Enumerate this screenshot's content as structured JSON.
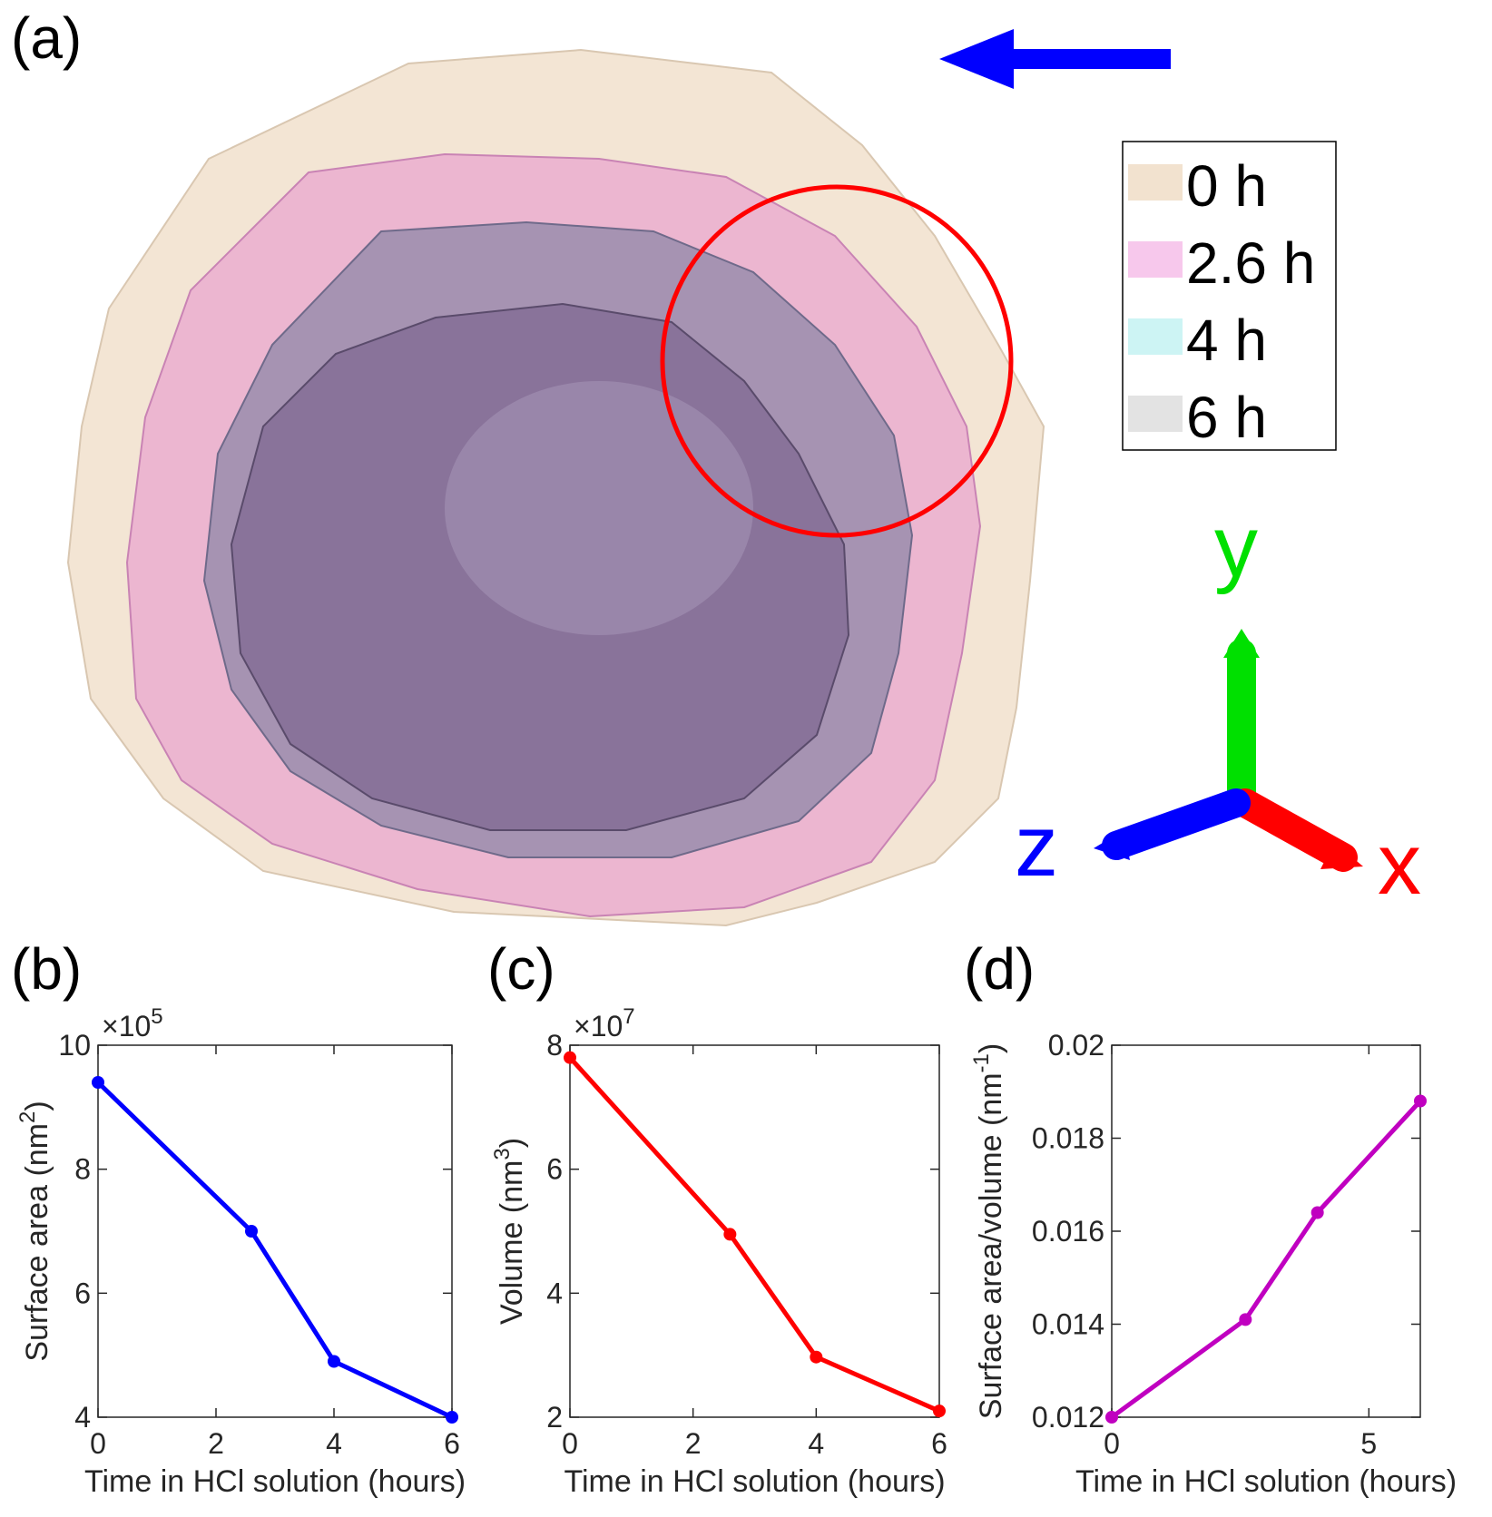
{
  "panel_labels": {
    "a": "(a)",
    "b": "(b)",
    "c": "(c)",
    "d": "(d)"
  },
  "panel_a": {
    "legend": [
      {
        "label": "0 h",
        "color": "#f2e2cf"
      },
      {
        "label": "2.6 h",
        "color": "#f7c8ec"
      },
      {
        "label": "4 h",
        "color": "#cdf4f4"
      },
      {
        "label": "6 h",
        "color": "#e3e3e3"
      }
    ],
    "axes_triad": {
      "x_label": "x",
      "y_label": "y",
      "z_label": "z",
      "x_color": "#ff0000",
      "y_color": "#00e000",
      "z_color": "#0000ff"
    },
    "arrow_color": "#0000ff",
    "highlight_circle_color": "#ff0000"
  },
  "chart_data": [
    {
      "type": "line",
      "panel": "(b)",
      "x": [
        0,
        2.6,
        4,
        6
      ],
      "series": [
        {
          "values": [
            9.4,
            7.0,
            4.9,
            4.0
          ],
          "color": "#0000ff"
        }
      ],
      "xlabel": "Time in HCl solution (hours)",
      "ylabel_main": "Surface area (nm",
      "ylabel_sup": "2",
      "ylabel_tail": ")",
      "exponent_base": "×10",
      "exponent_power": "5",
      "xlim": [
        0,
        6
      ],
      "ylim": [
        4,
        10
      ],
      "xticks": [
        0,
        2,
        4,
        6
      ],
      "xtick_labels": [
        "0",
        "2",
        "4",
        "6"
      ],
      "yticks": [
        4,
        6,
        8,
        10
      ],
      "ytick_labels": [
        "4",
        "6",
        "8",
        "10"
      ],
      "grid": false
    },
    {
      "type": "line",
      "panel": "(c)",
      "x": [
        0,
        2.6,
        4,
        6
      ],
      "series": [
        {
          "values": [
            7.8,
            4.95,
            2.97,
            2.1
          ],
          "color": "#ff0000"
        }
      ],
      "xlabel": "Time in HCl solution (hours)",
      "ylabel_main": "Volume (nm",
      "ylabel_sup": "3",
      "ylabel_tail": ")",
      "exponent_base": "×10",
      "exponent_power": "7",
      "xlim": [
        0,
        6
      ],
      "ylim": [
        2,
        8
      ],
      "xticks": [
        0,
        2,
        4,
        6
      ],
      "xtick_labels": [
        "0",
        "2",
        "4",
        "6"
      ],
      "yticks": [
        2,
        4,
        6,
        8
      ],
      "ytick_labels": [
        "2",
        "4",
        "6",
        "8"
      ],
      "grid": false
    },
    {
      "type": "line",
      "panel": "(d)",
      "x": [
        0,
        2.6,
        4,
        6
      ],
      "series": [
        {
          "values": [
            0.012,
            0.0141,
            0.0164,
            0.0188
          ],
          "color": "#c000c0"
        }
      ],
      "xlabel": "Time in HCl solution (hours)",
      "ylabel_main": "Surface area/volume (nm",
      "ylabel_sup": "-1",
      "ylabel_tail": ")",
      "exponent_base": "",
      "exponent_power": "",
      "xlim": [
        0,
        6
      ],
      "ylim": [
        0.012,
        0.02
      ],
      "xticks": [
        0,
        5
      ],
      "xtick_labels": [
        "0",
        "5"
      ],
      "yticks": [
        0.012,
        0.014,
        0.016,
        0.018,
        0.02
      ],
      "ytick_labels": [
        "0.012",
        "0.014",
        "0.016",
        "0.018",
        "0.02"
      ],
      "grid": false
    }
  ]
}
